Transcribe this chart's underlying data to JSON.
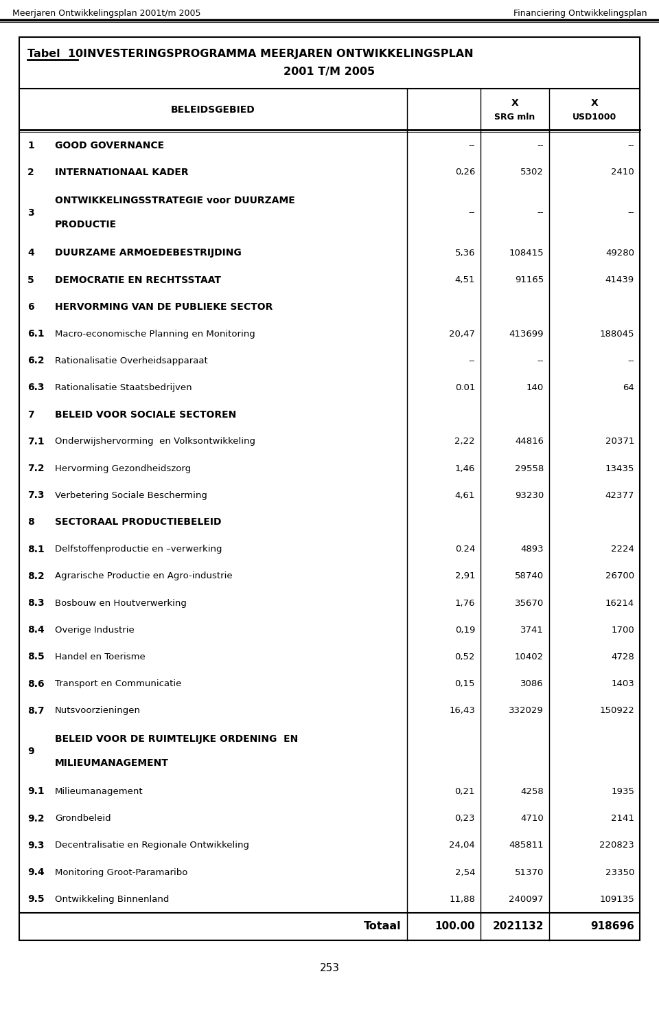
{
  "header_line1": "Meerjaren Ontwikkelingsplan 2001t/m 2005",
  "header_line2": "Financiering Ontwikkelingsplan",
  "rows": [
    {
      "num": "1",
      "bold_num": true,
      "desc": "GOOD GOVERNANCE",
      "bold_desc": true,
      "multiline": false,
      "pct": "--",
      "srg": "--",
      "usd": "--",
      "double_height": false
    },
    {
      "num": "2",
      "bold_num": true,
      "desc": "INTERNATIONAAL KADER",
      "bold_desc": true,
      "multiline": false,
      "pct": "0,26",
      "srg": "5302",
      "usd": "2410",
      "double_height": false
    },
    {
      "num": "3",
      "bold_num": true,
      "desc": "ONTWIKKELINGSSTRATEGIE voor DUURZAME\nPRODUCTIE",
      "bold_desc": true,
      "multiline": true,
      "pct": "--",
      "srg": "--",
      "usd": "--",
      "double_height": true
    },
    {
      "num": "4",
      "bold_num": true,
      "desc": "DUURZAME ARMOEDEBESTRIJDING",
      "bold_desc": true,
      "multiline": false,
      "pct": "5,36",
      "srg": "108415",
      "usd": "49280",
      "double_height": false
    },
    {
      "num": "5",
      "bold_num": true,
      "desc": "DEMOCRATIE EN RECHTSSTAAT",
      "bold_desc": true,
      "multiline": false,
      "pct": "4,51",
      "srg": "91165",
      "usd": "41439",
      "double_height": false
    },
    {
      "num": "6",
      "bold_num": true,
      "desc": "HERVORMING VAN DE PUBLIEKE SECTOR",
      "bold_desc": true,
      "multiline": false,
      "pct": "",
      "srg": "",
      "usd": "",
      "double_height": false
    },
    {
      "num": "6.1",
      "bold_num": true,
      "desc": "Macro-economische Planning en Monitoring",
      "bold_desc": false,
      "multiline": false,
      "pct": "20,47",
      "srg": "413699",
      "usd": "188045",
      "double_height": false
    },
    {
      "num": "6.2",
      "bold_num": true,
      "desc": "Rationalisatie Overheidsapparaat",
      "bold_desc": false,
      "multiline": false,
      "pct": "--",
      "srg": "--",
      "usd": "--",
      "double_height": false
    },
    {
      "num": "6.3",
      "bold_num": true,
      "desc": "Rationalisatie Staatsbedrijven",
      "bold_desc": false,
      "multiline": false,
      "pct": "0.01",
      "srg": "140",
      "usd": "64",
      "double_height": false
    },
    {
      "num": "7",
      "bold_num": true,
      "desc": "BELEID VOOR SOCIALE SECTOREN",
      "bold_desc": true,
      "multiline": false,
      "pct": "",
      "srg": "",
      "usd": "",
      "double_height": false
    },
    {
      "num": "7.1",
      "bold_num": true,
      "desc": "Onderwijshervorming  en Volksontwikkeling",
      "bold_desc": false,
      "multiline": false,
      "pct": "2,22",
      "srg": "44816",
      "usd": "20371",
      "double_height": false
    },
    {
      "num": "7.2",
      "bold_num": true,
      "desc": "Hervorming Gezondheidszorg",
      "bold_desc": false,
      "multiline": false,
      "pct": "1,46",
      "srg": "29558",
      "usd": "13435",
      "double_height": false
    },
    {
      "num": "7.3",
      "bold_num": true,
      "desc": "Verbetering Sociale Bescherming",
      "bold_desc": false,
      "multiline": false,
      "pct": "4,61",
      "srg": "93230",
      "usd": "42377",
      "double_height": false
    },
    {
      "num": "8",
      "bold_num": true,
      "desc": "SECTORAAL PRODUCTIEBELEID",
      "bold_desc": true,
      "multiline": false,
      "pct": "",
      "srg": "",
      "usd": "",
      "double_height": false
    },
    {
      "num": "8.1",
      "bold_num": true,
      "desc": "Delfstoffenproductie en –verwerking",
      "bold_desc": false,
      "multiline": false,
      "pct": "0.24",
      "srg": "4893",
      "usd": "2224",
      "double_height": false
    },
    {
      "num": "8.2",
      "bold_num": true,
      "desc": "Agrarische Productie en Agro-industrie",
      "bold_desc": false,
      "multiline": false,
      "pct": "2,91",
      "srg": "58740",
      "usd": "26700",
      "double_height": false
    },
    {
      "num": "8.3",
      "bold_num": true,
      "desc": "Bosbouw en Houtverwerking",
      "bold_desc": false,
      "multiline": false,
      "pct": "1,76",
      "srg": "35670",
      "usd": "16214",
      "double_height": false
    },
    {
      "num": "8.4",
      "bold_num": true,
      "desc": "Overige Industrie",
      "bold_desc": false,
      "multiline": false,
      "pct": "0,19",
      "srg": "3741",
      "usd": "1700",
      "double_height": false
    },
    {
      "num": "8.5",
      "bold_num": true,
      "desc": "Handel en Toerisme",
      "bold_desc": false,
      "multiline": false,
      "pct": "0,52",
      "srg": "10402",
      "usd": "4728",
      "double_height": false
    },
    {
      "num": "8.6",
      "bold_num": true,
      "desc": "Transport en Communicatie",
      "bold_desc": false,
      "multiline": false,
      "pct": "0,15",
      "srg": "3086",
      "usd": "1403",
      "double_height": false
    },
    {
      "num": "8.7",
      "bold_num": true,
      "desc": "Nutsvoorzieningen",
      "bold_desc": false,
      "multiline": false,
      "pct": "16,43",
      "srg": "332029",
      "usd": "150922",
      "double_height": false
    },
    {
      "num": "9",
      "bold_num": true,
      "desc": "BELEID VOOR DE RUIMTELIJKE ORDENING  EN\nMILIEUMANAGEMENT",
      "bold_desc": true,
      "multiline": true,
      "pct": "",
      "srg": "",
      "usd": "",
      "double_height": true
    },
    {
      "num": "9.1",
      "bold_num": true,
      "desc": "Milieumanagement",
      "bold_desc": false,
      "multiline": false,
      "pct": "0,21",
      "srg": "4258",
      "usd": "1935",
      "double_height": false
    },
    {
      "num": "9.2",
      "bold_num": true,
      "desc": "Grondbeleid",
      "bold_desc": false,
      "multiline": false,
      "pct": "0,23",
      "srg": "4710",
      "usd": "2141",
      "double_height": false
    },
    {
      "num": "9.3",
      "bold_num": true,
      "desc": "Decentralisatie en Regionale Ontwikkeling",
      "bold_desc": false,
      "multiline": false,
      "pct": "24,04",
      "srg": "485811",
      "usd": "220823",
      "double_height": false
    },
    {
      "num": "9.4",
      "bold_num": true,
      "desc": "Monitoring Groot-Paramaribo",
      "bold_desc": false,
      "multiline": false,
      "pct": "2,54",
      "srg": "51370",
      "usd": "23350",
      "double_height": false
    },
    {
      "num": "9.5",
      "bold_num": true,
      "desc": "Ontwikkeling Binnenland",
      "bold_desc": false,
      "multiline": false,
      "pct": "11,88",
      "srg": "240097",
      "usd": "109135",
      "double_height": false
    },
    {
      "num": "",
      "bold_num": false,
      "desc": "Totaal",
      "bold_desc": true,
      "multiline": false,
      "pct": "100.00",
      "srg": "2021132",
      "usd": "918696",
      "double_height": false,
      "is_total": true
    }
  ],
  "footer": "253"
}
